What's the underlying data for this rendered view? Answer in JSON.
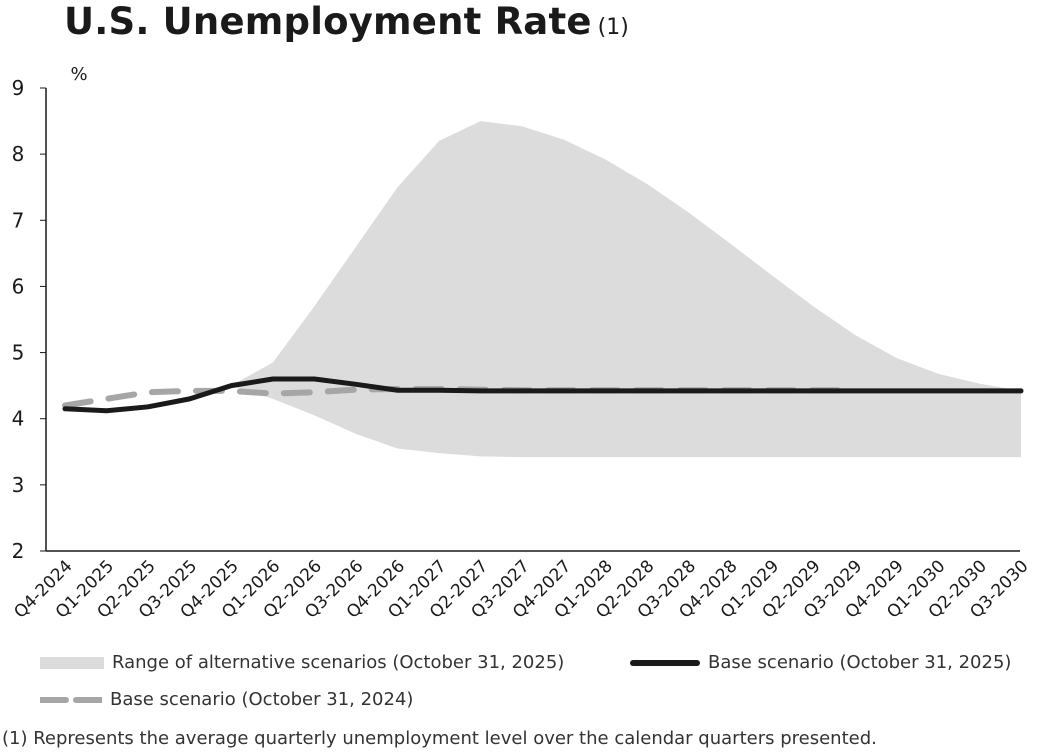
{
  "title": "U.S. Unemployment Rate",
  "title_note": "(1)",
  "footnote": "(1)  Represents the average quarterly unemployment level over the calendar quarters presented.",
  "chart_data": {
    "type": "area",
    "ylabel": "%",
    "ylim": [
      2,
      9
    ],
    "yticks": [
      2,
      3,
      4,
      5,
      6,
      7,
      8,
      9
    ],
    "grid": false,
    "legend_position": "bottom",
    "categories": [
      "Q4-2024",
      "Q1-2025",
      "Q2-2025",
      "Q3-2025",
      "Q4-2025",
      "Q1-2026",
      "Q2-2026",
      "Q3-2026",
      "Q4-2026",
      "Q1-2027",
      "Q2-2027",
      "Q3-2027",
      "Q4-2027",
      "Q1-2028",
      "Q2-2028",
      "Q3-2028",
      "Q4-2028",
      "Q1-2029",
      "Q2-2029",
      "Q3-2029",
      "Q4-2029",
      "Q1-2030",
      "Q2-2030",
      "Q3-2030"
    ],
    "range": {
      "name": "Range of alternative scenarios (October 31, 2025)",
      "color": "#dcdcdc",
      "start_index": 4,
      "upper": [
        4.5,
        4.85,
        5.7,
        6.6,
        7.5,
        8.2,
        8.5,
        8.42,
        8.22,
        7.92,
        7.55,
        7.12,
        6.65,
        6.17,
        5.7,
        5.27,
        4.92,
        4.68,
        4.53,
        4.42
      ],
      "lower": [
        4.5,
        4.3,
        4.05,
        3.77,
        3.55,
        3.48,
        3.43,
        3.42,
        3.42,
        3.42,
        3.42,
        3.42,
        3.42,
        3.42,
        3.42,
        3.42,
        3.42,
        3.42,
        3.42,
        3.42
      ]
    },
    "series": [
      {
        "name": "Base scenario (October 31, 2025)",
        "color": "#1a1a1a",
        "style": "solid",
        "values": [
          4.15,
          4.12,
          4.18,
          4.3,
          4.5,
          4.6,
          4.6,
          4.52,
          4.43,
          4.43,
          4.42,
          4.42,
          4.42,
          4.42,
          4.42,
          4.42,
          4.42,
          4.42,
          4.42,
          4.42,
          4.42,
          4.42,
          4.42,
          4.42
        ]
      },
      {
        "name": "Base scenario (October 31, 2024)",
        "color": "#a6a6a6",
        "style": "dashed",
        "values": [
          4.2,
          4.3,
          4.4,
          4.42,
          4.42,
          4.38,
          4.4,
          4.44,
          4.45,
          4.45,
          4.44,
          4.43,
          4.43,
          4.43,
          4.43,
          4.43,
          4.43,
          4.43,
          4.43,
          4.43,
          null,
          null,
          null,
          null
        ]
      }
    ]
  }
}
